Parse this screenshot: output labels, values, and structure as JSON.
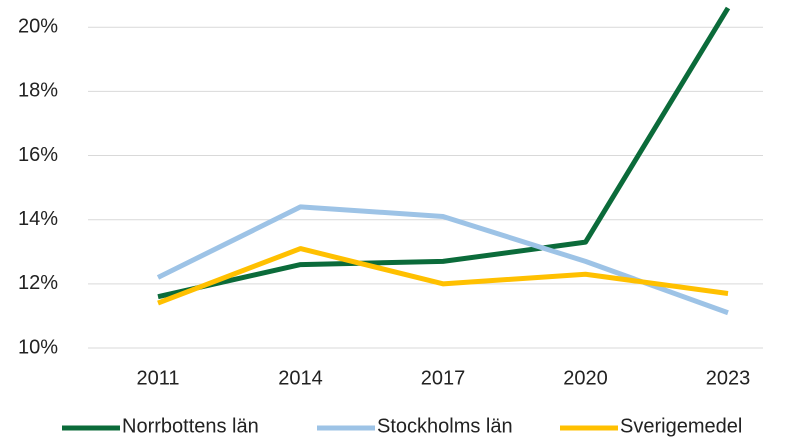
{
  "chart_data": {
    "type": "line",
    "categories": [
      "2011",
      "2014",
      "2017",
      "2020",
      "2023"
    ],
    "series": [
      {
        "name": "Norrbottens län",
        "color": "#0b6b3a",
        "values": [
          11.6,
          12.6,
          12.7,
          13.3,
          20.6
        ]
      },
      {
        "name": "Stockholms län",
        "color": "#9dc3e6",
        "values": [
          12.2,
          14.4,
          14.1,
          12.7,
          11.1
        ]
      },
      {
        "name": "Sverigemedel",
        "color": "#ffc000",
        "values": [
          11.4,
          13.1,
          12.0,
          12.3,
          11.7
        ]
      }
    ],
    "ylim": [
      10,
      20.6
    ],
    "yticks": [
      {
        "value": 10,
        "label": "10%"
      },
      {
        "value": 12,
        "label": "12%"
      },
      {
        "value": 14,
        "label": "14%"
      },
      {
        "value": 16,
        "label": "16%"
      },
      {
        "value": 18,
        "label": "18%"
      },
      {
        "value": 20,
        "label": "20%"
      }
    ],
    "grid": true,
    "legend": "bottom"
  }
}
